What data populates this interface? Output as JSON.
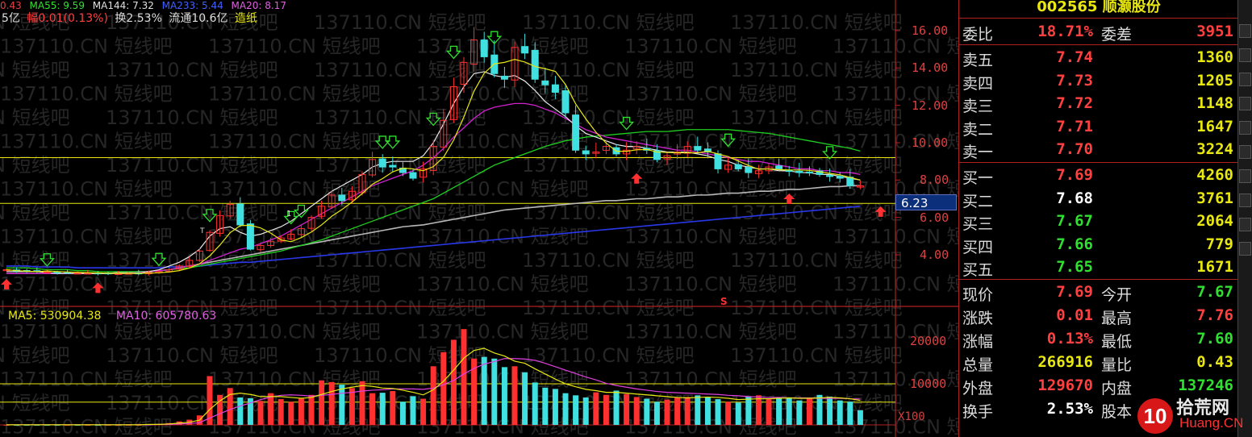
{
  "top_indicators": [
    "0.43",
    "MA55: 9.59",
    "MA144: 7.32",
    "MA233: 5.44",
    "MA20: 8.17"
  ],
  "info_line": {
    "mkt": "5亿",
    "amp": "幅0.01(0.13%)",
    "turn": "换2.53%",
    "float": "流通10.6亿",
    "sector": "造纸"
  },
  "y_axis_price": [
    "16.00",
    "14.00",
    "12.00",
    "10.00",
    "8.00",
    "6.00",
    "4.00"
  ],
  "y_axis_volume": [
    "20000",
    "10000"
  ],
  "price_tag": "6.23",
  "volume_scale": "X100",
  "volume_ma": {
    "ma5": "MA5: 530904.38",
    "ma10": "MA10: 605780.63"
  },
  "signal_marks": [
    "1",
    "T",
    "S"
  ],
  "watermark_text": "137110.CN 短线吧",
  "colors": {
    "up": "#ff3030",
    "down": "#40e0e0",
    "panel_red": "#b02020",
    "yellow": "#e8e810",
    "green": "#30e030"
  },
  "quote": {
    "title": "002565 顺灏股份",
    "wei_bi": {
      "label": "委比",
      "value": "18.71%",
      "label2": "委差",
      "value2": "3951"
    },
    "asks": [
      {
        "label": "卖五",
        "price": "7.74",
        "vol": "1360"
      },
      {
        "label": "卖四",
        "price": "7.73",
        "vol": "1205"
      },
      {
        "label": "卖三",
        "price": "7.72",
        "vol": "1148"
      },
      {
        "label": "卖二",
        "price": "7.71",
        "vol": "1647"
      },
      {
        "label": "卖一",
        "price": "7.70",
        "vol": "3224"
      }
    ],
    "bids": [
      {
        "label": "买一",
        "price": "7.69",
        "vol": "4260"
      },
      {
        "label": "买二",
        "price": "7.68",
        "vol": "3761"
      },
      {
        "label": "买三",
        "price": "7.67",
        "vol": "2064"
      },
      {
        "label": "买四",
        "price": "7.66",
        "vol": "779"
      },
      {
        "label": "买五",
        "price": "7.65",
        "vol": "1671"
      }
    ],
    "stats": [
      {
        "l1": "现价",
        "v1": "7.69",
        "l2": "今开",
        "v2": "7.67"
      },
      {
        "l1": "涨跌",
        "v1": "0.01",
        "l2": "最高",
        "v2": "7.76"
      },
      {
        "l1": "涨幅",
        "v1": "0.13%",
        "l2": "最低",
        "v2": "7.60"
      },
      {
        "l1": "总量",
        "v1": "266916",
        "l2": "量比",
        "v2": "0.43"
      },
      {
        "l1": "外盘",
        "v1": "129670",
        "l2": "内盘",
        "v2": "137246"
      },
      {
        "l1": "换手",
        "v1": "2.53%",
        "l2": "股本",
        "v2": ""
      }
    ]
  },
  "logo": {
    "num": "10",
    "name": "拾荒网",
    "domain": "Huang.CN"
  },
  "chart_data": {
    "type": "candlestick",
    "y_axis_price": [
      4,
      6,
      8,
      10,
      12,
      14,
      16
    ],
    "horizontal_lines": [
      9.2,
      6.75
    ],
    "close": [
      3.2,
      3.15,
      3.12,
      3.1,
      3.08,
      3.05,
      3.05,
      3.02,
      3.02,
      3.0,
      3.0,
      3.0,
      3.01,
      3.02,
      3.05,
      3.1,
      3.2,
      3.4,
      3.7,
      4.2,
      5.2,
      6.1,
      6.7,
      5.6,
      4.3,
      4.5,
      4.7,
      4.9,
      5.1,
      5.4,
      6.0,
      6.6,
      7.2,
      6.9,
      7.4,
      8.3,
      9.1,
      8.7,
      8.7,
      8.4,
      8.1,
      8.6,
      9.8,
      11.2,
      13.0,
      14.3,
      15.5,
      14.6,
      13.7,
      13.4,
      15.1,
      14.8,
      13.4,
      13.1,
      12.7,
      11.6,
      9.6,
      9.4,
      9.5,
      9.8,
      9.4,
      9.6,
      9.8,
      9.6,
      9.1,
      9.3,
      9.5,
      9.8,
      9.6,
      9.5,
      8.6,
      8.8,
      8.6,
      8.4,
      8.5,
      8.7,
      8.6,
      8.5,
      8.4,
      8.4,
      8.3,
      8.2,
      8.1,
      7.7,
      7.69
    ],
    "ma_white": [
      3.1,
      3.1,
      3.1,
      3.1,
      3.05,
      3.0,
      3.0,
      3.0,
      3.0,
      3.0,
      3.0,
      3.0,
      3.0,
      3.0,
      3.1,
      3.2,
      3.4,
      3.6,
      3.9,
      4.3,
      5.0,
      5.4,
      5.5,
      5.2,
      5.0,
      5.1,
      5.3,
      5.5,
      5.8,
      6.2,
      6.6,
      7.0,
      7.4,
      7.7,
      8.0,
      8.3,
      8.7,
      8.9,
      9.0,
      9.0,
      9.0,
      9.3,
      10.0,
      11.0,
      12.1,
      13.0,
      13.7,
      13.8,
      13.6,
      13.5,
      13.6,
      13.3,
      12.8,
      12.2,
      11.8,
      11.4,
      10.9,
      10.5,
      10.3,
      10.1,
      9.9,
      9.8,
      9.8,
      9.7,
      9.6,
      9.5,
      9.5,
      9.5,
      9.4,
      9.3,
      9.1,
      9.0,
      8.8,
      8.7,
      8.6,
      8.6,
      8.5,
      8.5,
      8.4,
      8.4,
      8.3,
      8.3,
      8.2,
      8.1,
      8.0
    ],
    "ma_purple": [
      3.0,
      3.0,
      3.0,
      3.0,
      3.0,
      3.0,
      3.0,
      3.0,
      3.0,
      3.0,
      3.0,
      3.0,
      3.0,
      3.05,
      3.1,
      3.15,
      3.2,
      3.3,
      3.4,
      3.5,
      3.7,
      3.9,
      4.1,
      4.3,
      4.4,
      4.6,
      4.8,
      5.0,
      5.3,
      5.6,
      5.9,
      6.2,
      6.5,
      6.8,
      7.1,
      7.4,
      7.7,
      7.9,
      8.1,
      8.3,
      8.5,
      8.8,
      9.2,
      9.7,
      10.3,
      10.8,
      11.3,
      11.7,
      11.9,
      12.0,
      12.1,
      12.1,
      12.0,
      11.8,
      11.6,
      11.3,
      11.0,
      10.7,
      10.5,
      10.3,
      10.2,
      10.1,
      10.0,
      9.9,
      9.8,
      9.7,
      9.6,
      9.6,
      9.5,
      9.4,
      9.3,
      9.2,
      9.1,
      9.0,
      9.0,
      8.9,
      8.8,
      8.7,
      8.6,
      8.6,
      8.5,
      8.5,
      8.4,
      8.4,
      8.3
    ],
    "ma_green": [
      3.3,
      3.3,
      3.3,
      3.25,
      3.2,
      3.2,
      3.2,
      3.15,
      3.15,
      3.1,
      3.1,
      3.1,
      3.1,
      3.1,
      3.1,
      3.15,
      3.2,
      3.25,
      3.3,
      3.4,
      3.5,
      3.6,
      3.7,
      3.8,
      3.9,
      4.0,
      4.1,
      4.2,
      4.35,
      4.5,
      4.65,
      4.8,
      5.0,
      5.2,
      5.4,
      5.6,
      5.8,
      6.0,
      6.2,
      6.4,
      6.6,
      6.8,
      7.0,
      7.3,
      7.6,
      7.9,
      8.2,
      8.5,
      8.8,
      9.0,
      9.2,
      9.4,
      9.6,
      9.8,
      9.95,
      10.1,
      10.2,
      10.3,
      10.35,
      10.4,
      10.45,
      10.5,
      10.55,
      10.6,
      10.6,
      10.6,
      10.65,
      10.7,
      10.7,
      10.7,
      10.7,
      10.7,
      10.65,
      10.6,
      10.55,
      10.5,
      10.4,
      10.3,
      10.2,
      10.1,
      10.0,
      9.9,
      9.8,
      9.7,
      9.55
    ],
    "ma_gray": [
      3.0,
      3.0,
      3.0,
      3.0,
      3.0,
      3.0,
      3.0,
      3.0,
      3.0,
      3.0,
      3.0,
      3.05,
      3.05,
      3.1,
      3.1,
      3.15,
      3.2,
      3.3,
      3.4,
      3.5,
      3.6,
      3.7,
      3.8,
      3.9,
      4.0,
      4.1,
      4.2,
      4.3,
      4.4,
      4.5,
      4.6,
      4.7,
      4.8,
      4.9,
      5.0,
      5.1,
      5.2,
      5.3,
      5.4,
      5.5,
      5.55,
      5.6,
      5.7,
      5.8,
      5.9,
      6.0,
      6.1,
      6.2,
      6.3,
      6.4,
      6.45,
      6.5,
      6.55,
      6.6,
      6.65,
      6.7,
      6.75,
      6.8,
      6.85,
      6.9,
      6.9,
      6.95,
      7.0,
      7.0,
      7.05,
      7.1,
      7.1,
      7.15,
      7.2,
      7.2,
      7.25,
      7.3,
      7.3,
      7.35,
      7.4,
      7.4,
      7.45,
      7.5,
      7.5,
      7.55,
      7.6,
      7.65,
      7.65,
      7.7,
      7.7
    ],
    "ma_blue": [
      3.4,
      3.4,
      3.4,
      3.35,
      3.35,
      3.35,
      3.35,
      3.3,
      3.3,
      3.3,
      3.3,
      3.3,
      3.3,
      3.3,
      3.3,
      3.3,
      3.35,
      3.35,
      3.4,
      3.4,
      3.45,
      3.5,
      3.55,
      3.6,
      3.6,
      3.65,
      3.7,
      3.75,
      3.8,
      3.85,
      3.9,
      3.95,
      4.0,
      4.05,
      4.1,
      4.15,
      4.2,
      4.25,
      4.3,
      4.35,
      4.4,
      4.45,
      4.5,
      4.55,
      4.6,
      4.65,
      4.7,
      4.75,
      4.8,
      4.85,
      4.9,
      4.95,
      5.0,
      5.05,
      5.1,
      5.15,
      5.2,
      5.25,
      5.3,
      5.35,
      5.4,
      5.45,
      5.5,
      5.55,
      5.6,
      5.65,
      5.7,
      5.75,
      5.8,
      5.85,
      5.9,
      5.95,
      6.0,
      6.05,
      6.1,
      6.15,
      6.2,
      6.25,
      6.3,
      6.35,
      6.4,
      6.45,
      6.5,
      6.55,
      6.6
    ],
    "volume": [
      0.4,
      0.4,
      0.4,
      0.4,
      0.4,
      0.4,
      0.4,
      0.4,
      0.4,
      0.4,
      0.4,
      0.4,
      0.4,
      0.4,
      0.5,
      0.6,
      0.8,
      1.2,
      1.6,
      2.6,
      11.8,
      7.4,
      9.0,
      6.8,
      6.6,
      6.0,
      7.8,
      6.4,
      5.8,
      6.5,
      7.4,
      10.8,
      10.4,
      9.8,
      9.0,
      10.6,
      7.8,
      7.9,
      8.3,
      5.8,
      7.1,
      6.5,
      14.1,
      17.4,
      20.3,
      22.8,
      15.9,
      16.3,
      15.9,
      13.9,
      14.1,
      12.7,
      10.3,
      9.1,
      8.8,
      7.8,
      7.3,
      6.8,
      8.0,
      7.4,
      8.4,
      7.6,
      6.9,
      6.5,
      5.8,
      6.3,
      6.7,
      6.9,
      7.3,
      6.9,
      6.4,
      5.8,
      5.6,
      7.0,
      7.3,
      6.4,
      6.9,
      6.8,
      6.1,
      6.5,
      7.4,
      7.0,
      6.1,
      5.8,
      3.8
    ],
    "volume_ma_white": [
      0.4,
      0.4,
      0.4,
      0.4,
      0.4,
      0.4,
      0.4,
      0.4,
      0.4,
      0.4,
      0.4,
      0.4,
      0.4,
      0.4,
      0.5,
      0.5,
      0.6,
      0.8,
      1.0,
      1.5,
      4.0,
      6.0,
      7.5,
      7.8,
      7.5,
      7.0,
      7.0,
      7.0,
      6.8,
      6.6,
      6.8,
      7.5,
      8.2,
      8.8,
      9.2,
      9.6,
      9.4,
      9.0,
      8.9,
      8.5,
      8.0,
      7.4,
      8.6,
      10.6,
      13.2,
      16.0,
      17.8,
      18.3,
      17.2,
      16.5,
      15.3,
      14.8,
      13.5,
      12.3,
      11.1,
      10.0,
      9.3,
      8.7,
      8.4,
      8.0,
      8.0,
      7.8,
      7.6,
      7.4,
      7.2,
      7.0,
      6.8,
      6.7,
      6.8,
      6.9,
      6.8,
      6.6,
      6.3,
      6.4,
      6.5,
      6.5,
      6.6,
      6.7,
      6.6,
      6.6,
      6.7,
      6.8,
      6.7,
      6.5,
      6.1
    ],
    "volume_ma_purple": [
      0.4,
      0.4,
      0.4,
      0.4,
      0.4,
      0.4,
      0.4,
      0.4,
      0.4,
      0.4,
      0.4,
      0.4,
      0.4,
      0.4,
      0.4,
      0.5,
      0.5,
      0.6,
      0.7,
      0.9,
      2.0,
      3.0,
      4.0,
      4.8,
      5.5,
      6.3,
      6.9,
      7.3,
      7.4,
      7.3,
      7.1,
      7.3,
      7.5,
      7.8,
      8.0,
      8.3,
      8.5,
      8.6,
      8.8,
      8.8,
      8.8,
      8.7,
      9.0,
      9.8,
      10.8,
      12.3,
      13.6,
      14.6,
      15.2,
      15.9,
      15.9,
      15.8,
      15.5,
      14.8,
      14.0,
      13.2,
      12.4,
      11.6,
      10.9,
      10.1,
      9.6,
      9.2,
      8.8,
      8.5,
      8.2,
      8.0,
      7.9,
      7.8,
      7.7,
      7.6,
      7.5,
      7.3,
      7.2,
      7.0,
      6.9,
      6.8,
      6.8,
      6.7,
      6.7,
      6.7,
      6.6,
      6.6,
      6.6,
      6.5,
      6.4
    ],
    "buy_arrows_x": [
      0,
      21,
      84,
      191,
      229,
      235,
      255
    ],
    "sell_arrows_x": [
      4,
      15,
      20,
      28,
      29,
      37,
      38,
      42,
      44,
      48,
      61,
      71,
      81
    ],
    "bottom_signal": "S"
  }
}
